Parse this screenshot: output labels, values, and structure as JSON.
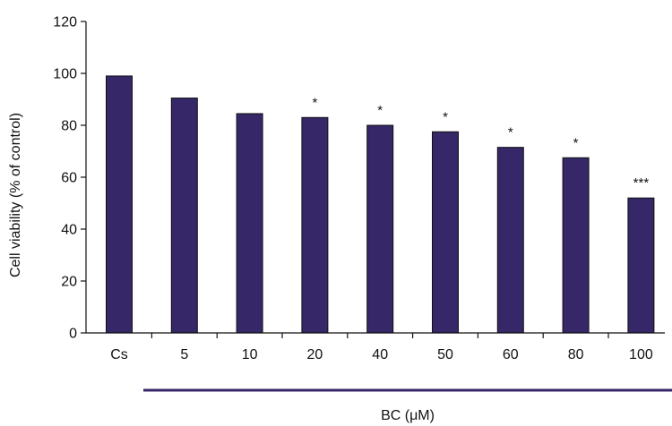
{
  "chart_data": {
    "type": "bar",
    "categories": [
      "Cs",
      "5",
      "10",
      "20",
      "40",
      "50",
      "60",
      "80",
      "100"
    ],
    "values": [
      99,
      90.5,
      84.5,
      83,
      80,
      77.5,
      71.5,
      67.5,
      52
    ],
    "significance": [
      "",
      "",
      "",
      "*",
      "*",
      "*",
      "*",
      "*",
      "***"
    ],
    "ylabel": "Cell viability (% of control)",
    "xlabel": "BC (μM)",
    "ylim": [
      0,
      120
    ],
    "yticks": [
      0,
      20,
      40,
      60,
      80,
      100,
      120
    ],
    "grid": false,
    "legend": "none",
    "bar_color": "#352768",
    "bar_edge_color": "#111111",
    "bracket_color": "#352768"
  }
}
